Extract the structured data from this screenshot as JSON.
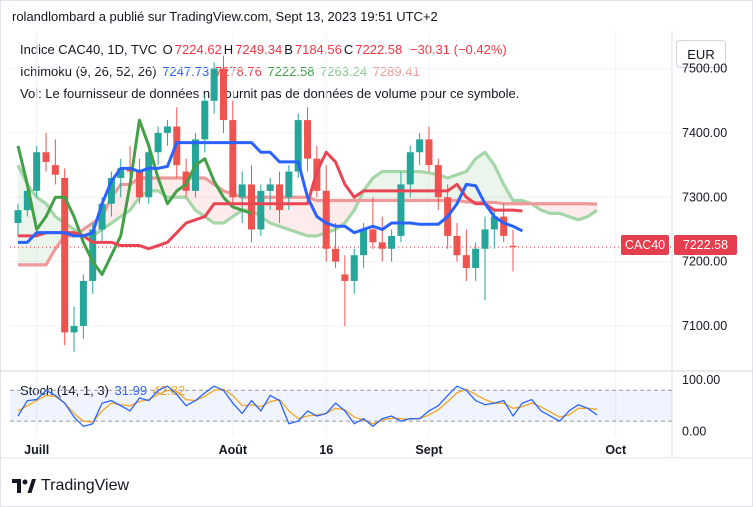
{
  "header": {
    "text": "rolandlombard a publié sur TradingView.com, Sept 13, 2023 19:51 UTC+2"
  },
  "legend": {
    "symbol": "Indice CAC40, 1D, TVC",
    "ohlc": [
      {
        "k": "O",
        "v": "7224.62"
      },
      {
        "k": "H",
        "v": "7249.34"
      },
      {
        "k": "B",
        "v": "7184.56"
      },
      {
        "k": "C",
        "v": "7222.58"
      }
    ],
    "change": "−30.31 (−0.42%)",
    "ichimoku_label": "Ichimoku (9, 26, 52, 26)",
    "ichimoku_values": [
      "7247.73",
      "7278.76",
      "7222.58",
      "7263.24",
      "7289.41"
    ],
    "vol_text": "Vol: Le fournisseur de données ne fournit pas de données de volume pour ce symbole.",
    "stoch_label": "Stoch (14, 1, 3)",
    "stoch_values": [
      "31.99",
      "42.82"
    ]
  },
  "currency": "EUR",
  "price_tag": {
    "symbol": "CAC40",
    "value": "7222.58"
  },
  "brand": "TradingView",
  "colors": {
    "up": "#26a69a",
    "down": "#ef5350",
    "conversion": "#2962ff",
    "base": "#e84555",
    "lagging": "#43a047",
    "spanA": "#a5d6a7",
    "spanB": "#ef9a9a",
    "stochK": "#2962ff",
    "stochD": "#f5a623"
  },
  "chart_data": [
    {
      "type": "candlestick",
      "title": "Indice CAC40, 1D, TVC",
      "y_ticks": [
        "7500.00",
        "7400.00",
        "7300.00",
        "7200.00",
        "7100.00"
      ],
      "ylim": [
        7030,
        7560
      ],
      "x_ticks": [
        {
          "label": "Juill",
          "index": 2
        },
        {
          "label": "Août",
          "index": 23
        },
        {
          "label": "16",
          "index": 33
        },
        {
          "label": "Sept",
          "index": 44
        },
        {
          "label": "Oct",
          "index": 64
        }
      ],
      "candles": [
        [
          7260,
          7290,
          7240,
          7280
        ],
        [
          7280,
          7320,
          7270,
          7310
        ],
        [
          7310,
          7380,
          7300,
          7370
        ],
        [
          7370,
          7400,
          7340,
          7355
        ],
        [
          7350,
          7390,
          7320,
          7335
        ],
        [
          7330,
          7345,
          7070,
          7090
        ],
        [
          7090,
          7130,
          7060,
          7100
        ],
        [
          7100,
          7180,
          7080,
          7170
        ],
        [
          7170,
          7260,
          7150,
          7250
        ],
        [
          7250,
          7300,
          7230,
          7290
        ],
        [
          7290,
          7340,
          7270,
          7330
        ],
        [
          7330,
          7360,
          7300,
          7345
        ],
        [
          7345,
          7380,
          7320,
          7340
        ],
        [
          7340,
          7360,
          7290,
          7300
        ],
        [
          7300,
          7380,
          7290,
          7370
        ],
        [
          7370,
          7410,
          7350,
          7400
        ],
        [
          7400,
          7420,
          7380,
          7410
        ],
        [
          7410,
          7440,
          7330,
          7350
        ],
        [
          7340,
          7360,
          7300,
          7310
        ],
        [
          7310,
          7400,
          7300,
          7390
        ],
        [
          7390,
          7460,
          7370,
          7450
        ],
        [
          7450,
          7510,
          7430,
          7500
        ],
        [
          7500,
          7520,
          7400,
          7420
        ],
        [
          7420,
          7450,
          7290,
          7300
        ],
        [
          7300,
          7340,
          7260,
          7320
        ],
        [
          7320,
          7350,
          7230,
          7250
        ],
        [
          7250,
          7320,
          7240,
          7310
        ],
        [
          7310,
          7330,
          7280,
          7320
        ],
        [
          7320,
          7340,
          7260,
          7280
        ],
        [
          7300,
          7350,
          7280,
          7340
        ],
        [
          7340,
          7430,
          7330,
          7420
        ],
        [
          7420,
          7440,
          7340,
          7360
        ],
        [
          7360,
          7380,
          7300,
          7310
        ],
        [
          7310,
          7350,
          7200,
          7220
        ],
        [
          7220,
          7260,
          7190,
          7200
        ],
        [
          7180,
          7210,
          7100,
          7170
        ],
        [
          7170,
          7220,
          7150,
          7210
        ],
        [
          7210,
          7260,
          7190,
          7250
        ],
        [
          7250,
          7300,
          7220,
          7230
        ],
        [
          7230,
          7270,
          7200,
          7220
        ],
        [
          7220,
          7250,
          7200,
          7240
        ],
        [
          7240,
          7340,
          7230,
          7320
        ],
        [
          7320,
          7380,
          7300,
          7370
        ],
        [
          7370,
          7400,
          7350,
          7390
        ],
        [
          7390,
          7410,
          7340,
          7350
        ],
        [
          7350,
          7360,
          7280,
          7300
        ],
        [
          7300,
          7320,
          7220,
          7240
        ],
        [
          7240,
          7260,
          7200,
          7210
        ],
        [
          7210,
          7250,
          7170,
          7190
        ],
        [
          7190,
          7230,
          7170,
          7220
        ],
        [
          7220,
          7270,
          7140,
          7250
        ],
        [
          7250,
          7280,
          7220,
          7270
        ],
        [
          7270,
          7290,
          7230,
          7240
        ],
        [
          7224.62,
          7249.34,
          7184.56,
          7222.58
        ]
      ],
      "conversion": [
        7230,
        7230,
        7245,
        7245,
        7245,
        7245,
        7240,
        7240,
        7245,
        7290,
        7325,
        7345,
        7345,
        7340,
        7345,
        7345,
        7348,
        7385,
        7385,
        7385,
        7385,
        7385,
        7385,
        7385,
        7385,
        7385,
        7370,
        7370,
        7355,
        7355,
        7355,
        7300,
        7270,
        7260,
        7255,
        7255,
        7245,
        7250,
        7255,
        7250,
        7260,
        7260,
        7260,
        7258,
        7258,
        7258,
        7270,
        7290,
        7320,
        7318,
        7290,
        7270,
        7260,
        7255,
        7247.73
      ],
      "base": [
        7240,
        7240,
        7240,
        7245,
        7245,
        7245,
        7245,
        7240,
        7230,
        7230,
        7230,
        7225,
        7225,
        7225,
        7220,
        7225,
        7230,
        7245,
        7260,
        7265,
        7270,
        7290,
        7290,
        7290,
        7290,
        7290,
        7290,
        7290,
        7290,
        7290,
        7290,
        7290,
        7340,
        7370,
        7355,
        7320,
        7300,
        7310,
        7310,
        7310,
        7310,
        7310,
        7310,
        7310,
        7310,
        7310,
        7310,
        7320,
        7300,
        7290,
        7290,
        7280,
        7280,
        7280,
        7278.76
      ],
      "lagging": [
        7380,
        7320,
        7250,
        7270,
        7300,
        7300,
        7270,
        7230,
        7200,
        7180,
        7210,
        7240,
        7320,
        7420,
        7380,
        7330,
        7290,
        7310,
        7320,
        7350,
        7360,
        7325,
        7300,
        7285,
        7280,
        7275
      ],
      "spanA": [
        7350,
        7320,
        7300,
        7290,
        7270,
        7260,
        7250,
        7240,
        7240,
        7250,
        7260,
        7270,
        7280,
        7300,
        7310,
        7310,
        7300,
        7300,
        7300,
        7280,
        7270,
        7260,
        7260,
        7270,
        7280,
        7280,
        7270,
        7260,
        7255,
        7250,
        7245,
        7240,
        7240,
        7245,
        7250,
        7260,
        7280,
        7310,
        7330,
        7340,
        7340,
        7340,
        7340,
        7340,
        7338,
        7335,
        7330,
        7335,
        7340,
        7360,
        7370,
        7350,
        7320,
        7295,
        7295,
        7290,
        7280,
        7275,
        7275,
        7270,
        7265,
        7270,
        7280
      ],
      "spanB": [
        7195,
        7195,
        7195,
        7195,
        7220,
        7240,
        7240,
        7250,
        7260,
        7270,
        7300,
        7320,
        7320,
        7330,
        7330,
        7330,
        7330,
        7330,
        7330,
        7330,
        7330,
        7320,
        7310,
        7305,
        7300,
        7300,
        7300,
        7300,
        7300,
        7300,
        7300,
        7300,
        7295,
        7295,
        7295,
        7295,
        7295,
        7295,
        7295,
        7295,
        7295,
        7295,
        7295,
        7295,
        7295,
        7295,
        7295,
        7295,
        7293,
        7292,
        7292,
        7292,
        7290,
        7290,
        7290,
        7290,
        7290,
        7290,
        7290,
        7290,
        7290,
        7290,
        7289.41
      ]
    },
    {
      "type": "line",
      "title": "Stoch (14, 1, 3)",
      "y_ticks": [
        "100.00",
        "0.00"
      ],
      "ylim": [
        0,
        100
      ],
      "bands": [
        20,
        80
      ],
      "series": [
        {
          "name": "K",
          "values": [
            30,
            60,
            62,
            80,
            70,
            55,
            28,
            10,
            15,
            55,
            60,
            50,
            40,
            65,
            60,
            80,
            88,
            72,
            50,
            60,
            75,
            88,
            80,
            55,
            35,
            60,
            40,
            70,
            60,
            15,
            20,
            40,
            30,
            35,
            55,
            40,
            15,
            25,
            10,
            25,
            30,
            20,
            25,
            25,
            40,
            50,
            70,
            88,
            80,
            60,
            52,
            55,
            60,
            30,
            55,
            62,
            40,
            30,
            20,
            40,
            52,
            45,
            31.99
          ]
        },
        {
          "name": "D",
          "values": [
            40,
            50,
            60,
            70,
            68,
            55,
            35,
            20,
            18,
            40,
            55,
            52,
            50,
            58,
            62,
            72,
            80,
            78,
            62,
            60,
            68,
            80,
            82,
            70,
            50,
            52,
            48,
            58,
            62,
            40,
            25,
            30,
            32,
            35,
            45,
            42,
            28,
            22,
            15,
            22,
            26,
            25,
            24,
            25,
            32,
            42,
            58,
            75,
            82,
            72,
            62,
            55,
            55,
            45,
            48,
            55,
            48,
            38,
            28,
            32,
            45,
            45,
            42.82
          ]
        }
      ]
    }
  ]
}
